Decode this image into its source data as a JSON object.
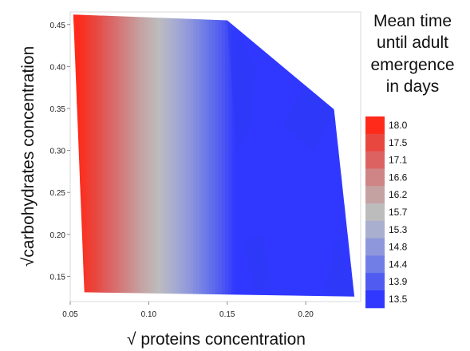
{
  "chart_data": {
    "type": "heatmap",
    "subtype": "filled-contour",
    "xlabel": "√ proteins concentration",
    "ylabel": "√carbohydrates concentration",
    "xlim": [
      0.05,
      0.235
    ],
    "ylim": [
      0.12,
      0.465
    ],
    "xticks": [
      0.05,
      0.1,
      0.15,
      0.2
    ],
    "xtick_labels": [
      "0.05",
      "0.10",
      "0.15",
      "0.20"
    ],
    "yticks": [
      0.15,
      0.2,
      0.25,
      0.3,
      0.35,
      0.4,
      0.45
    ],
    "ytick_labels": [
      "0.15",
      "0.20",
      "0.25",
      "0.30",
      "0.35",
      "0.40",
      "0.45"
    ],
    "legend": {
      "title_lines": [
        "Mean time",
        "until adult",
        "emergence",
        "in days"
      ],
      "placement": "right",
      "levels": [
        "18.0",
        "17.5",
        "17.1",
        "16.6",
        "16.2",
        "15.7",
        "15.3",
        "14.8",
        "14.4",
        "13.9",
        "13.5"
      ],
      "colors": [
        "#ff2a1a",
        "#e8473f",
        "#dc6262",
        "#cf8585",
        "#c5a2a2",
        "#bdbcbc",
        "#a9afcf",
        "#8f97dc",
        "#707ee6",
        "#505bf0",
        "#3038ff"
      ]
    },
    "value_range": [
      13.5,
      18.0
    ],
    "field_description": "mean time decreases mainly with increasing protein concentration; red (18.0) at low proteins to blue (13.5) at high proteins",
    "region_boundary": [
      {
        "x": 0.052,
        "y": 0.462
      },
      {
        "x": 0.15,
        "y": 0.455
      },
      {
        "x": 0.218,
        "y": 0.349
      },
      {
        "x": 0.231,
        "y": 0.126
      },
      {
        "x": 0.059,
        "y": 0.131
      }
    ],
    "grid": false
  }
}
